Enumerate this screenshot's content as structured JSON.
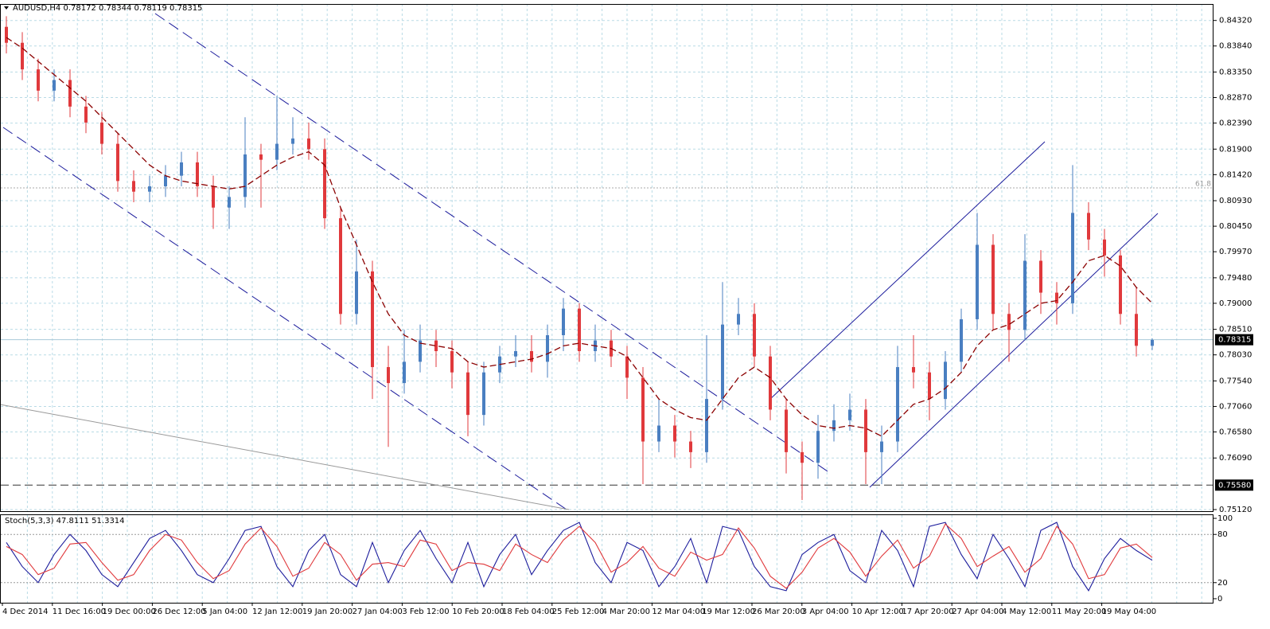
{
  "chart_data": {
    "type": "candlestick",
    "title": "AUDUSD,H4  0.78172 0.78344 0.78119 0.78315",
    "up_color": "#4a7fc1",
    "down_color": "#e0393c",
    "open": [
      0.842,
      0.839,
      0.834,
      0.83,
      0.832,
      0.827,
      0.824,
      0.82,
      0.813,
      0.811,
      0.812,
      0.814,
      0.8165,
      0.812,
      0.808,
      0.81,
      0.818,
      0.817,
      0.82,
      0.821,
      0.819,
      0.806,
      0.788,
      0.796,
      0.778,
      0.775,
      0.779,
      0.783,
      0.781,
      0.777,
      0.769,
      0.777,
      0.78,
      0.781,
      0.779,
      0.784,
      0.789,
      0.781,
      0.783,
      0.78,
      0.776,
      0.764,
      0.767,
      0.764,
      0.762,
      0.772,
      0.786,
      0.788,
      0.78,
      0.77,
      0.762,
      0.76,
      0.766,
      0.768,
      0.77,
      0.762,
      0.764,
      0.778,
      0.777,
      0.772,
      0.779,
      0.787,
      0.801,
      0.788,
      0.785,
      0.798,
      0.792,
      0.79,
      0.807,
      0.802,
      0.799,
      0.788,
      0.782
    ],
    "high": [
      0.844,
      0.841,
      0.836,
      0.834,
      0.834,
      0.829,
      0.826,
      0.822,
      0.815,
      0.814,
      0.816,
      0.8185,
      0.8185,
      0.814,
      0.812,
      0.825,
      0.82,
      0.829,
      0.825,
      0.824,
      0.821,
      0.808,
      0.802,
      0.798,
      0.782,
      0.785,
      0.786,
      0.785,
      0.783,
      0.779,
      0.779,
      0.782,
      0.784,
      0.784,
      0.786,
      0.791,
      0.79,
      0.786,
      0.785,
      0.782,
      0.778,
      0.772,
      0.769,
      0.766,
      0.784,
      0.794,
      0.791,
      0.79,
      0.782,
      0.772,
      0.764,
      0.769,
      0.771,
      0.773,
      0.772,
      0.767,
      0.782,
      0.784,
      0.779,
      0.781,
      0.789,
      0.807,
      0.803,
      0.79,
      0.803,
      0.8,
      0.794,
      0.816,
      0.809,
      0.804,
      0.8,
      0.793,
      0.7834
    ],
    "low": [
      0.837,
      0.832,
      0.828,
      0.828,
      0.825,
      0.822,
      0.818,
      0.811,
      0.809,
      0.809,
      0.81,
      0.812,
      0.81,
      0.804,
      0.804,
      0.808,
      0.808,
      0.815,
      0.818,
      0.817,
      0.804,
      0.786,
      0.786,
      0.772,
      0.763,
      0.773,
      0.777,
      0.778,
      0.774,
      0.765,
      0.767,
      0.775,
      0.778,
      0.777,
      0.776,
      0.781,
      0.779,
      0.779,
      0.778,
      0.772,
      0.756,
      0.762,
      0.761,
      0.759,
      0.76,
      0.77,
      0.784,
      0.778,
      0.768,
      0.758,
      0.753,
      0.757,
      0.764,
      0.766,
      0.756,
      0.756,
      0.762,
      0.774,
      0.768,
      0.77,
      0.777,
      0.785,
      0.785,
      0.779,
      0.783,
      0.788,
      0.786,
      0.788,
      0.8,
      0.795,
      0.786,
      0.78,
      0.7812
    ],
    "close": [
      0.839,
      0.834,
      0.83,
      0.832,
      0.827,
      0.824,
      0.82,
      0.813,
      0.811,
      0.812,
      0.814,
      0.8165,
      0.812,
      0.808,
      0.81,
      0.818,
      0.817,
      0.82,
      0.821,
      0.819,
      0.806,
      0.788,
      0.796,
      0.778,
      0.775,
      0.779,
      0.783,
      0.781,
      0.777,
      0.769,
      0.777,
      0.78,
      0.781,
      0.779,
      0.784,
      0.789,
      0.781,
      0.783,
      0.78,
      0.776,
      0.764,
      0.767,
      0.764,
      0.762,
      0.772,
      0.786,
      0.788,
      0.78,
      0.77,
      0.762,
      0.76,
      0.766,
      0.768,
      0.77,
      0.762,
      0.764,
      0.778,
      0.777,
      0.772,
      0.779,
      0.787,
      0.801,
      0.788,
      0.785,
      0.798,
      0.792,
      0.79,
      0.807,
      0.802,
      0.799,
      0.788,
      0.782,
      0.7831
    ],
    "ma": {
      "color": "#8b0000",
      "values": [
        0.84,
        0.838,
        0.8355,
        0.833,
        0.8305,
        0.828,
        0.825,
        0.822,
        0.819,
        0.816,
        0.814,
        0.813,
        0.8125,
        0.812,
        0.8115,
        0.812,
        0.814,
        0.816,
        0.8175,
        0.8185,
        0.816,
        0.808,
        0.801,
        0.794,
        0.788,
        0.784,
        0.7825,
        0.782,
        0.7815,
        0.779,
        0.778,
        0.7785,
        0.779,
        0.7795,
        0.7805,
        0.782,
        0.7825,
        0.782,
        0.7815,
        0.78,
        0.776,
        0.772,
        0.77,
        0.7685,
        0.768,
        0.772,
        0.776,
        0.778,
        0.776,
        0.772,
        0.769,
        0.767,
        0.7665,
        0.767,
        0.7665,
        0.765,
        0.768,
        0.771,
        0.772,
        0.774,
        0.777,
        0.782,
        0.785,
        0.786,
        0.788,
        0.79,
        0.7905,
        0.794,
        0.798,
        0.799,
        0.797,
        0.793,
        0.79
      ]
    },
    "ylim": [
      0.7509,
      0.8463
    ],
    "yticks": [
      {
        "value": 0.8432,
        "label": "0.84320"
      },
      {
        "value": 0.8384,
        "label": "0.83840"
      },
      {
        "value": 0.8335,
        "label": "0.83350"
      },
      {
        "value": 0.8287,
        "label": "0.82870"
      },
      {
        "value": 0.8239,
        "label": "0.82390"
      },
      {
        "value": 0.819,
        "label": "0.81900"
      },
      {
        "value": 0.8142,
        "label": "0.81420"
      },
      {
        "value": 0.8093,
        "label": "0.80930"
      },
      {
        "value": 0.8045,
        "label": "0.80450"
      },
      {
        "value": 0.7997,
        "label": "0.79970"
      },
      {
        "value": 0.7948,
        "label": "0.79480"
      },
      {
        "value": 0.79,
        "label": "0.79000"
      },
      {
        "value": 0.7851,
        "label": "0.78510"
      },
      {
        "value": 0.7803,
        "label": "0.78030"
      },
      {
        "value": 0.7754,
        "label": "0.77540"
      },
      {
        "value": 0.7706,
        "label": "0.77060"
      },
      {
        "value": 0.7658,
        "label": "0.76580"
      },
      {
        "value": 0.7609,
        "label": "0.76090"
      },
      {
        "value": 0.7512,
        "label": "0.75120"
      }
    ],
    "current_price": {
      "value": 0.78315,
      "label": "0.78315"
    },
    "levels": [
      {
        "value": 0.7558,
        "label": "0.75580"
      }
    ],
    "fib": {
      "value": 0.8117,
      "label": "61.8"
    },
    "time_labels": [
      "4 Dec 2014",
      "11 Dec 16:00",
      "19 Dec 00:00",
      "26 Dec 12:00",
      "5 Jan 04:00",
      "12 Jan 12:00",
      "19 Jan 20:00",
      "27 Jan 04:00",
      "3 Feb 12:00",
      "10 Feb 20:00",
      "18 Feb 04:00",
      "25 Feb 12:00",
      "4 Mar 20:00",
      "12 Mar 04:00",
      "19 Mar 12:00",
      "26 Mar 20:00",
      "3 Apr 04:00",
      "10 Apr 12:00",
      "17 Apr 20:00",
      "27 Apr 04:00",
      "4 May 12:00",
      "11 May 20:00",
      "19 May 04:00"
    ],
    "indicator": {
      "title": "Stoch(5,3,3) 47.8111 51.3314",
      "ylim": [
        -5,
        104
      ],
      "yticks": [
        0,
        20,
        80,
        100
      ],
      "levels": [
        20,
        80
      ],
      "series": [
        {
          "color": "#1c1c9c",
          "values": [
            70,
            40,
            20,
            55,
            80,
            60,
            30,
            15,
            45,
            75,
            85,
            60,
            30,
            20,
            50,
            85,
            90,
            40,
            15,
            60,
            80,
            30,
            15,
            70,
            20,
            60,
            85,
            50,
            20,
            70,
            15,
            55,
            80,
            30,
            60,
            85,
            95,
            45,
            20,
            70,
            60,
            15,
            40,
            75,
            20,
            90,
            85,
            40,
            15,
            10,
            55,
            70,
            80,
            35,
            20,
            85,
            60,
            15,
            90,
            95,
            55,
            25,
            80,
            50,
            15,
            85,
            95,
            40,
            10,
            50,
            75,
            60,
            47.8111
          ]
        },
        {
          "color": "#e0393c",
          "values": [
            65,
            55,
            30,
            38,
            68,
            70,
            45,
            23,
            30,
            60,
            80,
            73,
            45,
            25,
            35,
            68,
            88,
            65,
            28,
            38,
            70,
            55,
            23,
            43,
            45,
            40,
            73,
            68,
            35,
            45,
            43,
            35,
            68,
            55,
            45,
            73,
            90,
            70,
            33,
            45,
            65,
            38,
            28,
            58,
            48,
            55,
            88,
            63,
            28,
            13,
            33,
            63,
            75,
            58,
            28,
            53,
            73,
            38,
            53,
            93,
            75,
            40,
            53,
            65,
            33,
            50,
            90,
            68,
            25,
            30,
            63,
            68,
            51.3314
          ]
        }
      ]
    }
  }
}
